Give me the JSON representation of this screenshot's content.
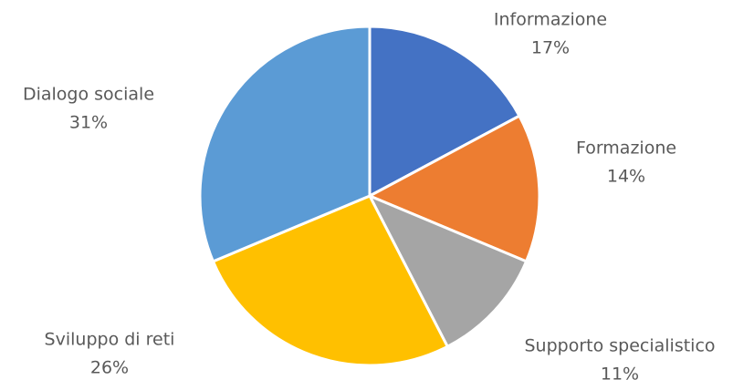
{
  "chart_data": {
    "type": "pie",
    "categories": [
      "Informazione",
      "Formazione",
      "Supporto specialistico",
      "Sviluppo di reti",
      "Dialogo sociale"
    ],
    "values": [
      17,
      14,
      11,
      26,
      31
    ],
    "value_labels": [
      "17%",
      "14%",
      "11%",
      "26%",
      "31%"
    ],
    "colors": [
      "#4472c4",
      "#ed7d31",
      "#a5a5a5",
      "#ffc000",
      "#5b9bd5"
    ]
  }
}
